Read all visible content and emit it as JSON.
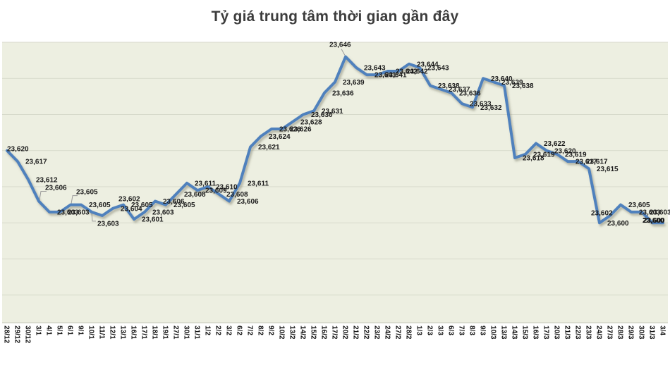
{
  "chart_data": {
    "type": "line",
    "title": "Tỷ giá trung tâm thời gian gần đây",
    "categories": [
      "28/12",
      "29/12",
      "30/12",
      "3/1",
      "4/1",
      "5/1",
      "6/1",
      "9/1",
      "10/1",
      "11/1",
      "12/1",
      "13/1",
      "16/1",
      "17/1",
      "18/1",
      "19/1",
      "27/1",
      "30/1",
      "31/1",
      "1/2",
      "2/2",
      "3/2",
      "6/2",
      "7/2",
      "8/2",
      "9/2",
      "10/2",
      "13/2",
      "14/2",
      "15/2",
      "16/2",
      "17/2",
      "20/2",
      "21/2",
      "22/2",
      "23/2",
      "24/2",
      "27/2",
      "28/2",
      "1/3",
      "2/3",
      "3/3",
      "6/3",
      "7/3",
      "8/3",
      "9/3",
      "10/3",
      "13/3",
      "14/3",
      "15/3",
      "16/3",
      "17/3",
      "20/3",
      "21/3",
      "22/3",
      "23/3",
      "24/3",
      "27/3",
      "28/3",
      "29/3",
      "30/3",
      "31/3",
      "3/4"
    ],
    "values": [
      23620,
      23617,
      23612,
      23606,
      23603,
      23603,
      23605,
      23605,
      23603,
      23602,
      23604,
      23605,
      23601,
      23603,
      23606,
      23605,
      23608,
      23611,
      23609,
      23610,
      23608,
      23606,
      23611,
      23621,
      23624,
      23626,
      23626,
      23628,
      23630,
      23631,
      23636,
      23639,
      23646,
      23643,
      23641,
      23641,
      23642,
      23642,
      23644,
      23643,
      23638,
      23637,
      23636,
      23633,
      23632,
      23640,
      23639,
      23638,
      23618,
      23619,
      23622,
      23620,
      23619,
      23617,
      23617,
      23615,
      23600,
      23602,
      23605,
      23603,
      23603,
      23600,
      23600
    ],
    "xlabel": "",
    "ylabel": "",
    "ylim": [
      23570,
      23650
    ],
    "gridline_unit": 10,
    "grid": "horizontal",
    "legend": "none",
    "y_axis_labels": "hidden",
    "x_label_rotation": 90,
    "data_labels": "every point, thousands comma format",
    "data_label_position": "right of point",
    "colors": {
      "series_line": "#4f81bd",
      "line_shadow": "#73735f",
      "plot_background": "#edefe1",
      "gridline": "#d7dacb",
      "axis_line": "#c3c7b6",
      "title_text": "#3d3d3d",
      "data_label_text": "#1c1c1c",
      "x_axis_label_text": "#111111",
      "page_background": "#ffffff",
      "leader_line": "#9a9a9a"
    }
  }
}
